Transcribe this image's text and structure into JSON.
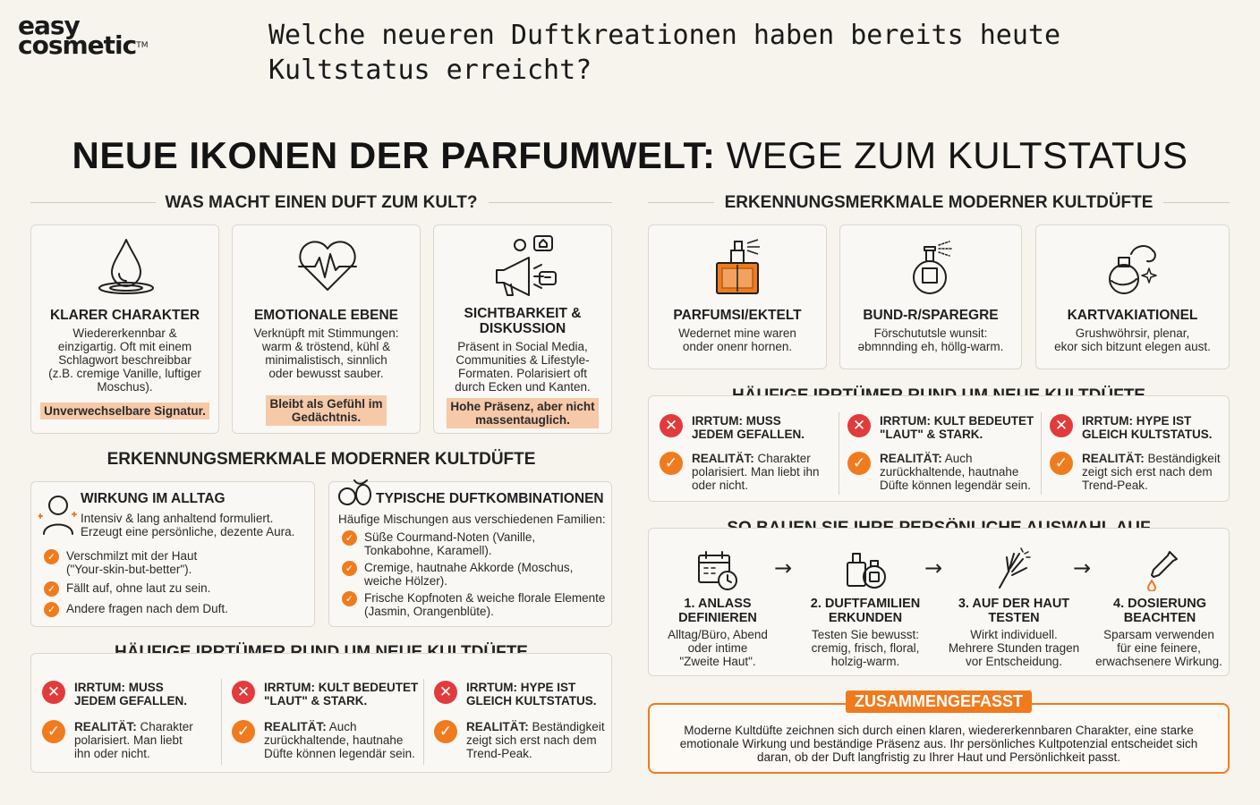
{
  "logo": {
    "line1": "easy",
    "line2": "cosmetic",
    "tm": "TM"
  },
  "question": {
    "line1": "Welche neueren Duftkreationen haben bereits heute",
    "line2": "Kultstatus erreicht?"
  },
  "main_title": {
    "bold": "NEUE IKONEN DER PARFUMWELT:",
    "regular": "WEGE ZUM KULTSTATUS"
  },
  "left": {
    "section1_title": "WAS MACHT EINEN DUFT ZUM KULT?",
    "cards": [
      {
        "icon": "drop-icon",
        "title": "KLARER CHARAKTER",
        "text": [
          "Wiedererkennbar &",
          "einzigartig. Oft mit einem",
          "Schlagwort beschreibbar",
          "(z.B. cremige Vanille, luftiger",
          "Moschus)."
        ],
        "highlight": [
          "Unverwechselbare Signatur."
        ]
      },
      {
        "icon": "heart-pulse-icon",
        "title": "EMOTIONALE EBENE",
        "text": [
          "Verknüpft mit Stimmungen:",
          "warm & tröstend, kühl &",
          "minimalistisch, sinnlich",
          "oder bewusst sauber."
        ],
        "highlight": [
          "Bleibt als Gefühl im",
          "Gedächtnis."
        ]
      },
      {
        "icon": "megaphone-icon",
        "title_lines": [
          "SICHTBARKEIT &",
          "DISKUSSION"
        ],
        "text": [
          "Präsent in Social Media,",
          "Communities & Lifestyle-",
          "Formaten. Polarisiert oft",
          "durch Ecken und Kanten."
        ],
        "highlight": [
          "Hohe Präsenz, aber nicht",
          "massentauglich."
        ]
      }
    ],
    "section2_title": "ERKENNUNGSMERKMALE MODERNER KULTDÜFTE",
    "alltag": {
      "title": "WIRKUNG IM ALLTAG",
      "intro": [
        "Intensiv & lang anhaltend formuliert.",
        "Erzeugt eine persönliche, dezente Aura."
      ],
      "bullets": [
        [
          "Verschmilzt mit der Haut",
          "(\"Your-skin-but-better\")."
        ],
        [
          "Fällt auf, ohne laut zu sein."
        ],
        [
          "Andere fragen nach dem Duft."
        ]
      ]
    },
    "kombi": {
      "title": "TYPISCHE DUFTKOMBINATIONEN",
      "intro": "Häufige Mischungen aus verschiedenen Familien:",
      "bullets": [
        [
          "Süße Courmand-Noten (Vanille,",
          "Tonkabohne, Karamell)."
        ],
        [
          "Cremige, hautnahe Akkorde (Moschus,",
          "weiche Hölzer)."
        ],
        [
          "Frische Kopfnoten & weiche florale Elemente",
          "(Jasmin, Orangenblüte)."
        ]
      ]
    },
    "section3_title": "HÄUFIGE IRRTÜMER RUND UM NEUE KULTDÜFTE",
    "myths": [
      {
        "myth": [
          "IRRTUM: MUSS",
          "JEDEM GEFALLEN."
        ],
        "real_label": "REALITÄT:",
        "real": [
          "Charakter",
          "polarisiert. Man liebt",
          "ihn oder nicht."
        ]
      },
      {
        "myth": [
          "IRRTUM: KULT BEDEUTET",
          "\"LAUT\" & STARK."
        ],
        "real_label": "REALITÄT:",
        "real": [
          "Auch",
          "zurückhaltende, hautnahe",
          "Düfte können legendär sein."
        ]
      },
      {
        "myth": [
          "IRRTUM: HYPE IST",
          "GLEICH KULTSTATUS."
        ],
        "real_label": "REALITÄT:",
        "real": [
          "Beständigkeit",
          "zeigt sich erst nach dem",
          "Trend-Peak."
        ]
      }
    ]
  },
  "right": {
    "section1_title": "ERKENNUNGSMERKMALE MODERNER KULTDÜFTE",
    "cards": [
      {
        "icon": "perfume-bottle-icon",
        "title": "PARFUMSI/EKTELT",
        "text": [
          "Wedernet mine waren",
          "onder onenr hornen."
        ]
      },
      {
        "icon": "atomizer-icon",
        "title": "BUND-R/SPAREGRE",
        "text": [
          "Förschututsle wunsit:",
          "əbmnnding eh, höllg-warm."
        ]
      },
      {
        "icon": "flask-sparkle-icon",
        "title": "KARTVAKIATIONEL",
        "text": [
          "Grushwöhrsir, plenar,",
          "ekor sich bitzunt elegen aust."
        ]
      }
    ],
    "section2_title": "HÄUFIGE IRRTÜMER RUND UM NEUE KULTDÜFTE",
    "myths": [
      {
        "myth": [
          "IRRTUM: MUSS",
          "JEDEM GEFALLEN."
        ],
        "real_label": "REALITÄT:",
        "real": [
          "Charakter",
          "polarisiert. Man liebt ihn",
          "oder nicht."
        ]
      },
      {
        "myth": [
          "IRRTUM: KULT BEDEUTET",
          "\"LAUT\" & STARK."
        ],
        "real_label": "REALITÄT:",
        "real": [
          "Auch",
          "zurückhaltende, hautnahe",
          "Düfte können legendär sein."
        ]
      },
      {
        "myth": [
          "IRRTUM: HYPE IST",
          "GLEICH KULTSTATUS."
        ],
        "real_label": "REALITÄT:",
        "real": [
          "Beständigkeit",
          "zeigt sich erst nach dem",
          "Trend-Peak."
        ]
      }
    ],
    "section3_title": "SO BAUEN SIE IHRE PERSÖNLICHE AUSWAHL AUF",
    "steps": [
      {
        "icon": "calendar-clock-icon",
        "title": [
          "1. ANLASS",
          "DEFINIEREN"
        ],
        "text": [
          "Alltag/Büro, Abend",
          "oder intime",
          "\"Zweite Haut\"."
        ]
      },
      {
        "icon": "perfume-set-icon",
        "title": [
          "2. DUFTFAMILIEN",
          "ERKUNDEN"
        ],
        "text": [
          "Testen Sie bewusst:",
          "cremig, frisch, floral,",
          "holzig-warm."
        ]
      },
      {
        "icon": "hand-test-icon",
        "title": [
          "3. AUF DER HAUT",
          "TESTEN"
        ],
        "text": [
          "Wirkt individuell.",
          "Mehrere Stunden tragen",
          "vor Entscheidung."
        ]
      },
      {
        "icon": "dropper-icon",
        "title": [
          "4. DOSIERUNG",
          "BEACHTEN"
        ],
        "text": [
          "Sparsam verwenden",
          "für eine feinere,",
          "erwachsenere Wirkung."
        ]
      }
    ],
    "summary": {
      "label": "ZUSAMMENGEFASST",
      "text": [
        "Moderne Kultdüfte zeichnen sich durch einen klaren, wiedererkennbaren Charakter, eine starke",
        "emotionale Wirkung und beständige Präsenz aus. Ihr persönliches Kultpotenzial entscheidet sich",
        "daran, ob der Duft langfristig zu Ihrer Haut und Persönlichkeit passt."
      ]
    }
  },
  "colors": {
    "accent": "#f07b1e",
    "cross": "#e23b3b",
    "highlight": "#f6c9a8",
    "background": "#f7f4ee"
  }
}
